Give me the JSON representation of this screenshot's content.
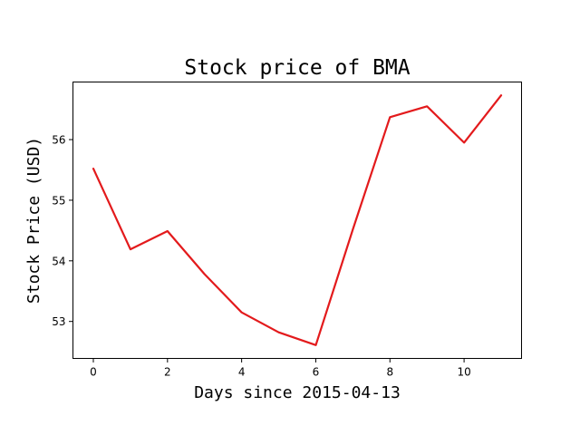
{
  "chart_data": {
    "type": "line",
    "title": "Stock price of BMA",
    "xlabel": "Days since 2015-04-13",
    "ylabel": "Stock Price (USD)",
    "x": [
      0,
      1,
      2,
      3,
      4,
      5,
      6,
      7,
      8,
      9,
      10,
      11
    ],
    "series": [
      {
        "values": [
          55.52,
          54.19,
          54.49,
          53.78,
          53.15,
          52.82,
          52.61,
          54.52,
          56.37,
          56.55,
          55.95,
          56.73
        ],
        "color": "#e31a1c"
      }
    ],
    "xlim": [
      -0.55,
      11.55
    ],
    "ylim": [
      52.39,
      56.95
    ],
    "xticks": [
      0,
      2,
      4,
      6,
      8,
      10
    ],
    "xtick_labels": [
      "0",
      "2",
      "4",
      "6",
      "8",
      "10"
    ],
    "yticks": [
      53,
      54,
      55,
      56
    ],
    "ytick_labels": [
      "53",
      "54",
      "55",
      "56"
    ],
    "grid": false,
    "legend": "none"
  }
}
